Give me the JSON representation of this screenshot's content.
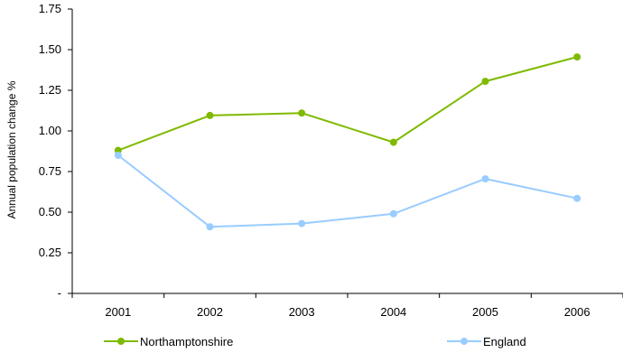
{
  "chart_data": {
    "type": "line",
    "title": "",
    "xlabel": "",
    "ylabel": "Annual population change %",
    "categories": [
      "2001",
      "2002",
      "2003",
      "2004",
      "2005",
      "2006"
    ],
    "ylim": [
      0,
      1.75
    ],
    "yticks": [
      0,
      0.25,
      0.5,
      0.75,
      1.0,
      1.25,
      1.5,
      1.75
    ],
    "ytick_labels": [
      "-",
      "0.25",
      "0.50",
      "0.75",
      "1.00",
      "1.25",
      "1.50",
      "1.75"
    ],
    "grid": false,
    "legend_position": "bottom",
    "series": [
      {
        "name": "Northamptonshire",
        "color": "#7fba00",
        "values": [
          0.88,
          1.095,
          1.11,
          0.93,
          1.305,
          1.455
        ]
      },
      {
        "name": "England",
        "color": "#99ccff",
        "values": [
          0.85,
          0.41,
          0.43,
          0.49,
          0.705,
          0.585
        ]
      }
    ]
  }
}
